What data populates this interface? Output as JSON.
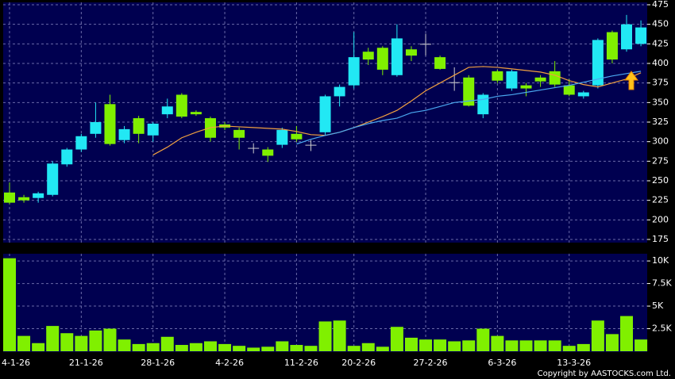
{
  "chart_data": [
    {
      "type": "candlestick",
      "categories": [
        "4-1-26",
        null,
        null,
        null,
        null,
        "21-1-26",
        null,
        null,
        null,
        null,
        "28-1-26",
        null,
        null,
        null,
        null,
        "4-2-26",
        null,
        null,
        null,
        null,
        "11-2-26",
        null,
        null,
        null,
        "20-2-26",
        null,
        null,
        null,
        null,
        "27-2-26",
        null,
        null,
        null,
        null,
        "6-3-26",
        null,
        null,
        null,
        null,
        "13-3-26",
        null,
        null,
        null,
        null,
        null
      ],
      "open": [
        235,
        229,
        228,
        232,
        271,
        290,
        310,
        348,
        302,
        330,
        308,
        335,
        360,
        338,
        330,
        322,
        315,
        292,
        290,
        296,
        310,
        296,
        312,
        358,
        372,
        415,
        420,
        385,
        418,
        425,
        408,
        376,
        382,
        335,
        390,
        368,
        372,
        382,
        390,
        372,
        358,
        372,
        440,
        418,
        425
      ],
      "high": [
        248,
        232,
        236,
        275,
        292,
        310,
        350,
        360,
        320,
        333,
        325,
        355,
        362,
        340,
        332,
        325,
        318,
        298,
        293,
        318,
        320,
        302,
        360,
        373,
        440,
        420,
        422,
        450,
        422,
        438,
        410,
        395,
        385,
        362,
        392,
        392,
        375,
        385,
        403,
        380,
        365,
        432,
        442,
        462,
        455
      ],
      "low": [
        220,
        222,
        222,
        230,
        268,
        287,
        305,
        295,
        298,
        298,
        300,
        330,
        330,
        333,
        300,
        315,
        290,
        285,
        274,
        292,
        300,
        288,
        308,
        345,
        368,
        398,
        385,
        383,
        403,
        410,
        392,
        365,
        345,
        330,
        375,
        365,
        358,
        370,
        370,
        358,
        355,
        368,
        400,
        415,
        422
      ],
      "close": [
        222,
        225,
        234,
        272,
        290,
        307,
        325,
        297,
        316,
        310,
        323,
        345,
        332,
        335,
        305,
        318,
        305,
        292,
        282,
        315,
        303,
        296,
        358,
        370,
        408,
        405,
        392,
        432,
        410,
        425,
        393,
        376,
        346,
        360,
        378,
        390,
        368,
        377,
        373,
        360,
        363,
        430,
        405,
        450,
        446
      ],
      "up_color": "#22e8f4",
      "down_color": "#80f000",
      "series": [
        {
          "color": "#f0a040",
          "values": [
            null,
            null,
            null,
            null,
            null,
            null,
            null,
            null,
            null,
            null,
            283,
            293,
            305,
            312,
            318,
            320,
            319,
            318,
            317,
            316,
            313,
            309,
            308,
            312,
            318,
            325,
            332,
            340,
            352,
            365,
            375,
            385,
            395,
            396,
            395,
            393,
            391,
            389,
            385,
            378,
            373,
            370,
            375,
            380,
            388
          ]
        },
        {
          "color": "#4aa8f0",
          "values": [
            null,
            null,
            null,
            null,
            null,
            null,
            null,
            null,
            null,
            null,
            null,
            null,
            null,
            null,
            null,
            null,
            null,
            null,
            null,
            null,
            297,
            303,
            308,
            312,
            318,
            323,
            327,
            330,
            337,
            340,
            345,
            350,
            352,
            354,
            358,
            360,
            363,
            366,
            369,
            372,
            376,
            380,
            384,
            387,
            390
          ]
        }
      ],
      "ylim": [
        175,
        475
      ],
      "yticks": [
        175,
        200,
        225,
        250,
        275,
        300,
        325,
        350,
        375,
        400,
        425,
        450,
        475
      ],
      "grid": true
    },
    {
      "type": "bar",
      "color": "#80f000",
      "values": [
        10300,
        1700,
        900,
        2800,
        2000,
        1700,
        2300,
        2500,
        1300,
        800,
        900,
        1600,
        700,
        900,
        1100,
        800,
        600,
        400,
        500,
        1100,
        700,
        600,
        3300,
        3400,
        600,
        900,
        500,
        2700,
        1500,
        1300,
        1300,
        1100,
        1200,
        2500,
        1700,
        1200,
        1200,
        1200,
        1200,
        600,
        800,
        3400,
        1900,
        3900,
        1300
      ],
      "ylim": [
        0,
        10800
      ],
      "yticks": [
        {
          "value": 2500,
          "label": "2.5K"
        },
        {
          "value": 5000,
          "label": "5K"
        },
        {
          "value": 7500,
          "label": "7.5K"
        },
        {
          "value": 10000,
          "label": "10K"
        }
      ],
      "grid": true
    }
  ],
  "copyright": "Copyright by AASTOCKS.com Ltd."
}
